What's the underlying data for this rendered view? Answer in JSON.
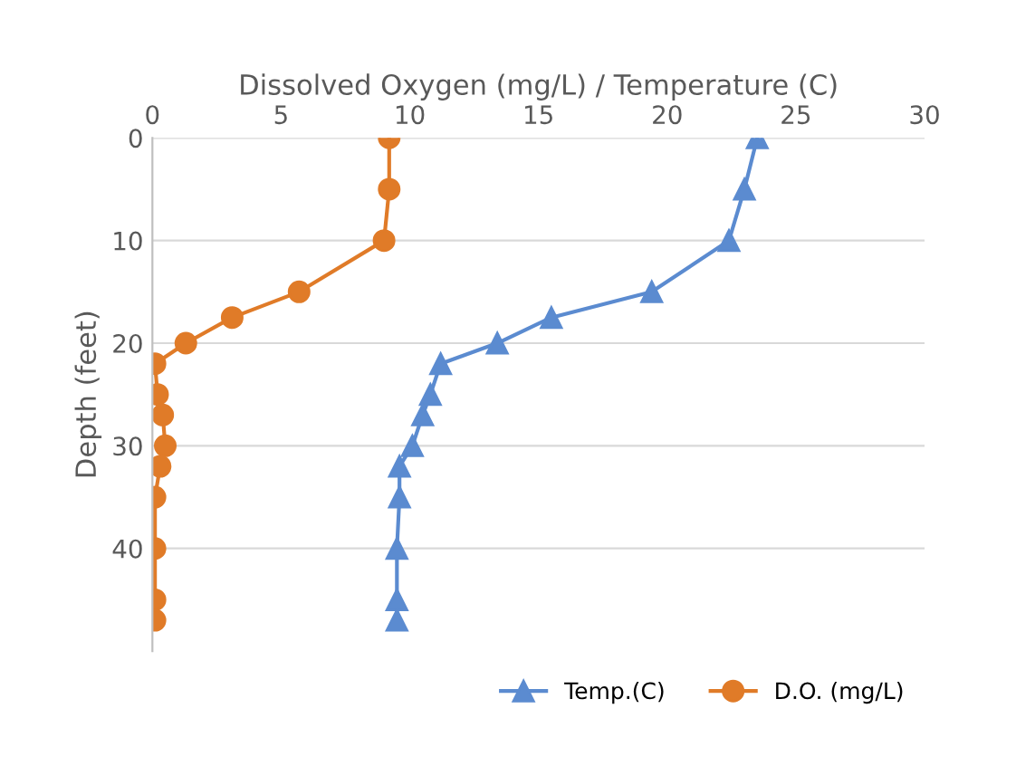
{
  "chart_data": {
    "type": "line",
    "xlabel": "Dissolved Oxygen (mg/L) / Temperature (C)",
    "ylabel": "Depth (feet)",
    "xlim": [
      0,
      30
    ],
    "xticks": [
      0,
      5,
      10,
      15,
      20,
      25,
      30
    ],
    "ylim": [
      50,
      0
    ],
    "yticks": [
      0,
      10,
      20,
      30,
      40
    ],
    "grid": "y",
    "legend": "bottom right",
    "series": [
      {
        "name": "Temp.(C)",
        "color": "#5b8bd0",
        "marker": "triangle",
        "x": [
          23.5,
          23,
          22.4,
          19.4,
          15.5,
          13.4,
          11.2,
          10.8,
          10.5,
          10.1,
          9.6,
          9.6,
          9.5,
          9.5,
          9.5
        ],
        "values": [
          0,
          5,
          10,
          15,
          17.5,
          20,
          22,
          25,
          27,
          30,
          32,
          35,
          40,
          45,
          47
        ]
      },
      {
        "name": "D.O. (mg/L)",
        "color": "#e07b28",
        "marker": "circle",
        "x": [
          9.2,
          9.2,
          9.0,
          5.7,
          3.1,
          1.3,
          0.1,
          0.2,
          0.4,
          0.5,
          0.3,
          0.1,
          0.1,
          0.1,
          0.1
        ],
        "values": [
          0,
          5,
          10,
          15,
          17.5,
          20,
          22,
          25,
          27,
          30,
          32,
          35,
          40,
          45,
          47
        ]
      }
    ]
  }
}
